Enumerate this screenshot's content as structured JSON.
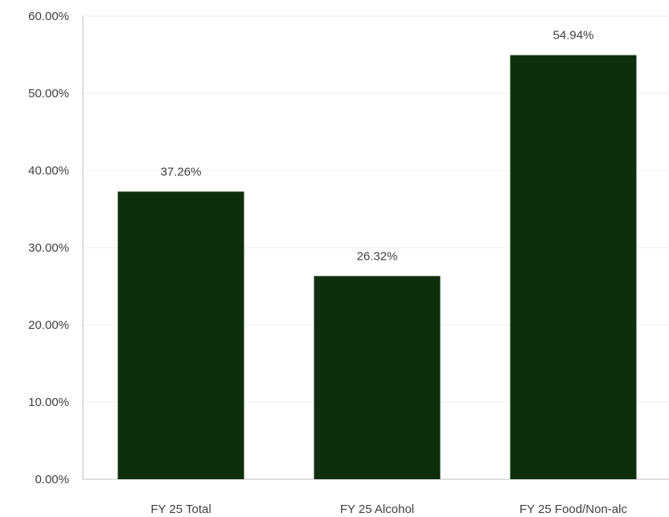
{
  "chart_data": {
    "type": "bar",
    "title": "",
    "xlabel": "",
    "ylabel": "",
    "categories": [
      "FY 25 Total",
      "FY 25 Alcohol",
      "FY 25 Food/Non-alc"
    ],
    "values": [
      37.26,
      26.32,
      54.94
    ],
    "data_labels": [
      "37.26%",
      "26.32%",
      "54.94%"
    ],
    "ylim": [
      0,
      60
    ],
    "yticks": [
      0,
      10,
      20,
      30,
      40,
      50,
      60
    ],
    "ytick_labels": [
      "0.00%",
      "10.00%",
      "20.00%",
      "30.00%",
      "40.00%",
      "50.00%",
      "60.00%"
    ],
    "grid": true,
    "legend": "none",
    "bar_color": "#0f2e0d",
    "grid_color": "#ececec",
    "axis_color": "#bfbfbf"
  }
}
